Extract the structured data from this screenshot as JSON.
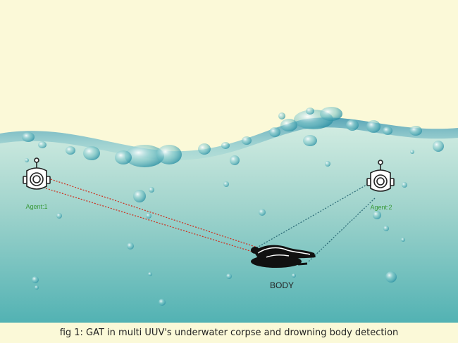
{
  "labels": {
    "agent1": "Agent:1",
    "agent2": "Agent:2",
    "body": "BODY"
  },
  "caption": "fig 1: GAT in multi UUV's underwater corpse and drowning body detection",
  "colors": {
    "background": "#fbf9d8",
    "water_top": "#c9e8df",
    "water_bottom": "#4fb0b2",
    "agent_label": "#3a9a3a",
    "agent1_links": "#cc3322",
    "agent2_links": "#2f6f7a",
    "body_label": "#222222"
  },
  "icons": {
    "agent": "robot-head-icon",
    "body": "drowned-body-icon"
  }
}
